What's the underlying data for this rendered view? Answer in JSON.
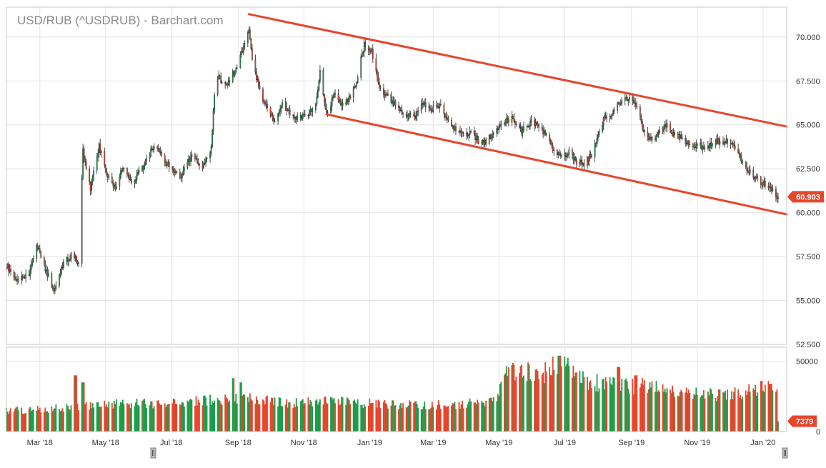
{
  "header": {
    "title": "USD/RUB (^USDRUB) - Barchart.com"
  },
  "colors": {
    "up": "#1a9e49",
    "down": "#e8452c",
    "trend": "#e8452c",
    "grid": "#e3e3e3",
    "badge": "#e8452c",
    "badge_volume": "#e8452c"
  },
  "chart_data": [
    {
      "type": "candlestick",
      "title": "USD/RUB (^USDRUB) - Barchart.com",
      "x_ticks": [
        "Mar '18",
        "May '18",
        "Jul '18",
        "Sep '18",
        "Nov '18",
        "Jan '19",
        "Mar '19",
        "May '19",
        "Jul '19",
        "Sep '19",
        "Nov '19",
        "Jan '20"
      ],
      "y_ticks": [
        "52.500",
        "55.000",
        "57.500",
        "60.000",
        "62.500",
        "65.000",
        "67.500",
        "70.000"
      ],
      "ylim": [
        52.5,
        71.7
      ],
      "xlim": [
        "2018-01-29",
        "2020-01-23"
      ],
      "last_price": "60.903",
      "price_path": [
        [
          "2018-01-29",
          57.0
        ],
        [
          "2018-02-08",
          56.1
        ],
        [
          "2018-02-19",
          56.5
        ],
        [
          "2018-02-26",
          58.3
        ],
        [
          "2018-03-05",
          57.0
        ],
        [
          "2018-03-14",
          55.6
        ],
        [
          "2018-03-22",
          57.0
        ],
        [
          "2018-03-30",
          57.6
        ],
        [
          "2018-04-06",
          57.2
        ],
        [
          "2018-04-10",
          63.5
        ],
        [
          "2018-04-17",
          61.3
        ],
        [
          "2018-04-25",
          63.8
        ],
        [
          "2018-05-02",
          62.2
        ],
        [
          "2018-05-10",
          61.4
        ],
        [
          "2018-05-18",
          62.7
        ],
        [
          "2018-05-25",
          61.7
        ],
        [
          "2018-06-05",
          62.6
        ],
        [
          "2018-06-15",
          63.9
        ],
        [
          "2018-06-25",
          62.9
        ],
        [
          "2018-07-04",
          62.3
        ],
        [
          "2018-07-10",
          62.1
        ],
        [
          "2018-07-20",
          63.2
        ],
        [
          "2018-07-30",
          62.5
        ],
        [
          "2018-08-07",
          63.7
        ],
        [
          "2018-08-10",
          66.8
        ],
        [
          "2018-08-13",
          67.8
        ],
        [
          "2018-08-20",
          67.2
        ],
        [
          "2018-08-30",
          68.2
        ],
        [
          "2018-09-07",
          69.5
        ],
        [
          "2018-09-11",
          70.4
        ],
        [
          "2018-09-14",
          68.6
        ],
        [
          "2018-09-24",
          66.3
        ],
        [
          "2018-10-01",
          65.6
        ],
        [
          "2018-10-05",
          65.1
        ],
        [
          "2018-10-12",
          66.2
        ],
        [
          "2018-10-22",
          65.4
        ],
        [
          "2018-11-05",
          65.6
        ],
        [
          "2018-11-12",
          66.2
        ],
        [
          "2018-11-16",
          68.0
        ],
        [
          "2018-11-22",
          65.6
        ],
        [
          "2018-11-30",
          66.8
        ],
        [
          "2018-12-07",
          66.1
        ],
        [
          "2018-12-14",
          66.6
        ],
        [
          "2018-12-20",
          67.5
        ],
        [
          "2018-12-27",
          69.6
        ],
        [
          "2019-01-03",
          69.2
        ],
        [
          "2019-01-10",
          67.0
        ],
        [
          "2019-01-18",
          66.6
        ],
        [
          "2019-01-25",
          66.1
        ],
        [
          "2019-02-04",
          65.6
        ],
        [
          "2019-02-12",
          65.5
        ],
        [
          "2019-02-20",
          66.2
        ],
        [
          "2019-02-28",
          65.9
        ],
        [
          "2019-03-08",
          66.1
        ],
        [
          "2019-03-15",
          65.2
        ],
        [
          "2019-03-22",
          64.7
        ],
        [
          "2019-03-29",
          64.5
        ],
        [
          "2019-04-05",
          64.6
        ],
        [
          "2019-04-12",
          64.1
        ],
        [
          "2019-04-19",
          64.0
        ],
        [
          "2019-04-26",
          64.6
        ],
        [
          "2019-05-06",
          65.2
        ],
        [
          "2019-05-14",
          65.4
        ],
        [
          "2019-05-22",
          64.6
        ],
        [
          "2019-05-31",
          65.2
        ],
        [
          "2019-06-07",
          64.9
        ],
        [
          "2019-06-14",
          64.4
        ],
        [
          "2019-06-21",
          63.5
        ],
        [
          "2019-06-28",
          63.1
        ],
        [
          "2019-07-05",
          63.5
        ],
        [
          "2019-07-12",
          62.9
        ],
        [
          "2019-07-19",
          62.8
        ],
        [
          "2019-07-26",
          63.3
        ],
        [
          "2019-08-02",
          64.6
        ],
        [
          "2019-08-07",
          65.4
        ],
        [
          "2019-08-14",
          65.7
        ],
        [
          "2019-08-23",
          66.4
        ],
        [
          "2019-08-30",
          66.6
        ],
        [
          "2019-09-06",
          65.9
        ],
        [
          "2019-09-13",
          64.6
        ],
        [
          "2019-09-20",
          64.1
        ],
        [
          "2019-09-27",
          64.6
        ],
        [
          "2019-10-04",
          65.0
        ],
        [
          "2019-10-11",
          64.4
        ],
        [
          "2019-10-18",
          64.2
        ],
        [
          "2019-10-25",
          63.8
        ],
        [
          "2019-11-01",
          63.9
        ],
        [
          "2019-11-08",
          63.7
        ],
        [
          "2019-11-15",
          64.0
        ],
        [
          "2019-11-22",
          64.1
        ],
        [
          "2019-11-29",
          64.0
        ],
        [
          "2019-12-06",
          63.7
        ],
        [
          "2019-12-13",
          62.8
        ],
        [
          "2019-12-20",
          62.3
        ],
        [
          "2019-12-27",
          61.9
        ],
        [
          "2020-01-03",
          61.6
        ],
        [
          "2020-01-10",
          61.2
        ],
        [
          "2020-01-15",
          60.9
        ]
      ],
      "trendlines": [
        {
          "x1": "2018-09-11",
          "y1": 71.3,
          "x2": "2020-01-23",
          "y2": 64.9
        },
        {
          "x1": "2018-11-22",
          "y1": 65.6,
          "x2": "2020-01-23",
          "y2": 59.9
        }
      ]
    },
    {
      "type": "bar",
      "title": "",
      "y_ticks": [
        "0",
        "50000"
      ],
      "ylim": [
        0,
        60000
      ],
      "last_volume": "7379",
      "levels": [
        [
          "2018-01-29",
          15000
        ],
        [
          "2018-04-10",
          18000
        ],
        [
          "2018-05-15",
          21000
        ],
        [
          "2018-06-20",
          20000
        ],
        [
          "2018-08-10",
          23000
        ],
        [
          "2018-09-15",
          24000
        ],
        [
          "2018-10-20",
          21000
        ],
        [
          "2018-12-01",
          22000
        ],
        [
          "2019-01-15",
          20000
        ],
        [
          "2019-02-20",
          19000
        ],
        [
          "2019-03-25",
          20000
        ],
        [
          "2019-04-29",
          22000
        ],
        [
          "2019-05-06",
          45000
        ],
        [
          "2019-06-10",
          42000
        ],
        [
          "2019-06-28",
          50000
        ],
        [
          "2019-07-15",
          38000
        ],
        [
          "2019-08-10",
          34000
        ],
        [
          "2019-09-15",
          33000
        ],
        [
          "2019-10-20",
          29000
        ],
        [
          "2019-11-25",
          26000
        ],
        [
          "2019-12-20",
          30000
        ],
        [
          "2020-01-15",
          33000
        ]
      ],
      "spikes": [
        [
          "2018-04-03",
          40000
        ],
        [
          "2018-04-10",
          35000
        ],
        [
          "2018-08-27",
          38000
        ],
        [
          "2018-09-03",
          35000
        ],
        [
          "2019-06-26",
          54000
        ],
        [
          "2019-07-12",
          42000
        ],
        [
          "2019-08-20",
          46000
        ],
        [
          "2019-09-05",
          40000
        ],
        [
          "2019-12-30",
          36000
        ],
        [
          "2020-01-08",
          34000
        ]
      ]
    }
  ]
}
